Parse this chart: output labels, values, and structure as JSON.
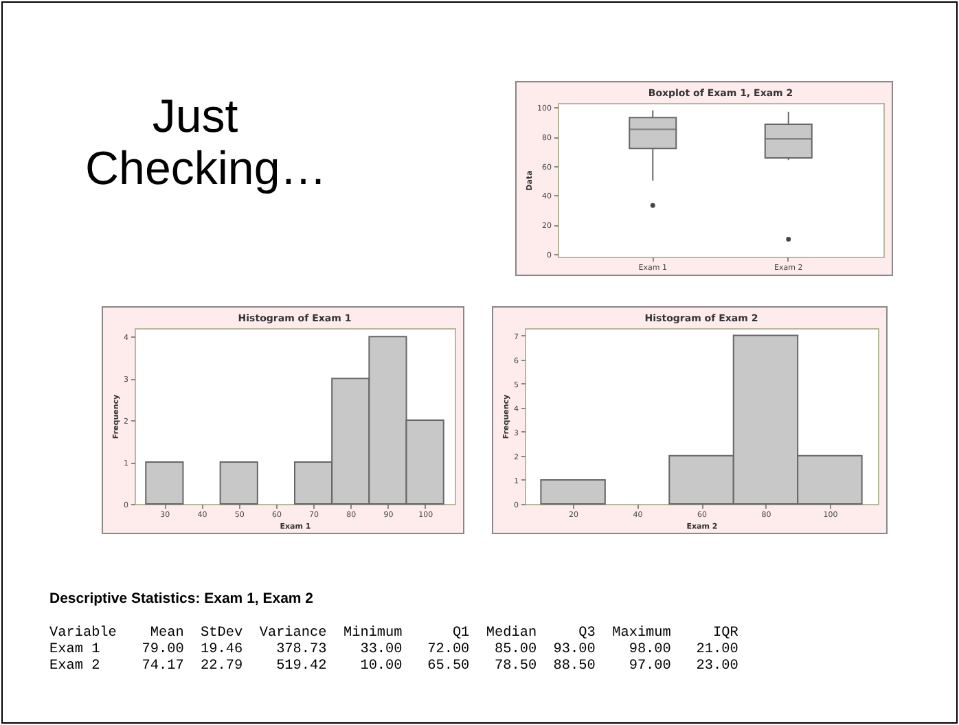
{
  "chart_data": [
    {
      "type": "other",
      "title": "Just Checking…"
    },
    {
      "type": "box",
      "title": "Boxplot of Exam 1, Exam 2",
      "ylabel": "Data",
      "categories": [
        "Exam 1",
        "Exam 2"
      ],
      "color": "#c8c8c8",
      "ylim": [
        -2,
        103
      ],
      "yticks": [
        0,
        20,
        40,
        60,
        80,
        100
      ],
      "boxes": [
        {
          "low": 50,
          "q1": 72,
          "median": 85,
          "q3": 93,
          "high": 98,
          "outliers": [
            33
          ]
        },
        {
          "low": 64,
          "q1": 65.5,
          "median": 78.5,
          "q3": 88.5,
          "high": 97,
          "outliers": [
            10
          ]
        }
      ]
    },
    {
      "type": "histogram",
      "title": "Histogram of Exam 1",
      "xlabel": "Exam 1",
      "ylabel": "Frequency",
      "color": "#c8c8c8",
      "bins": [
        25,
        35,
        45,
        55,
        65,
        75,
        85,
        95,
        105
      ],
      "values": [
        1,
        0,
        1,
        0,
        1,
        3,
        4,
        2
      ],
      "xlim": [
        22,
        108
      ],
      "xticks": [
        30,
        40,
        50,
        60,
        70,
        80,
        90,
        100
      ],
      "ylim": [
        0,
        4.2
      ],
      "yticks": [
        0,
        1,
        2,
        3,
        4
      ]
    },
    {
      "type": "histogram",
      "title": "Histogram of Exam 2",
      "xlabel": "Exam 2",
      "ylabel": "Frequency",
      "color": "#c8c8c8",
      "bins": [
        10,
        30,
        50,
        70,
        90,
        110
      ],
      "values": [
        1,
        0,
        2,
        7,
        2
      ],
      "xlim": [
        5,
        115
      ],
      "xticks": [
        20,
        40,
        60,
        80,
        100
      ],
      "ylim": [
        0,
        7.3
      ],
      "yticks": [
        0,
        1,
        2,
        3,
        4,
        5,
        6,
        7
      ]
    },
    {
      "type": "other",
      "title": "Descriptive Statistics: Exam 1, Exam 2",
      "annotations": [
        "Variable    Mean  StDev  Variance  Minimum      Q1  Median     Q3  Maximum     IQR",
        "Exam 1     79.00  19.46    378.73    33.00   72.00   85.00  93.00    98.00   21.00",
        "Exam 2     74.17  22.79    519.42    10.00   65.50   78.50  88.50    97.00   23.00"
      ]
    }
  ]
}
